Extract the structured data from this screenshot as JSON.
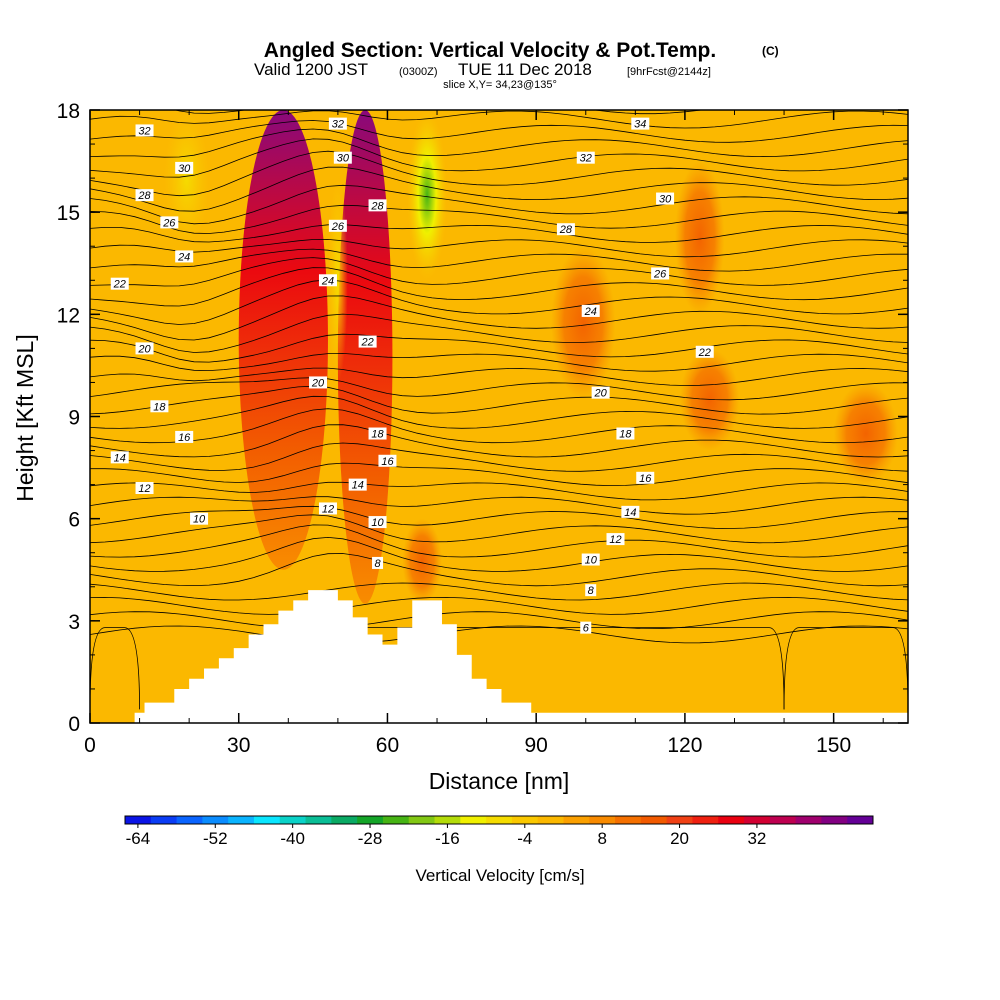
{
  "title": {
    "main": "Angled Section: Vertical Velocity & Pot.Temp.",
    "copyright": "(C)",
    "valid_prefix": "Valid 1200 JST",
    "valid_utc": "(0300Z)",
    "valid_date": "TUE 11 Dec 2018",
    "forecast": "[9hrFcst@2144z]",
    "slice": "slice X,Y= 34,23@135°"
  },
  "chart_data": {
    "type": "heatmap",
    "xlabel": "Distance [nm]",
    "ylabel": "Height [Kft MSL]",
    "xlim": [
      0,
      165
    ],
    "ylim": [
      0,
      18
    ],
    "x_ticks": [
      0,
      30,
      60,
      90,
      120,
      150
    ],
    "y_ticks": [
      0,
      3,
      6,
      9,
      12,
      15,
      18
    ],
    "background_color": "#fbb800",
    "colorbar": {
      "label": "Vertical Velocity [cm/s]",
      "tick_labels": [
        -64,
        -52,
        -40,
        -28,
        -16,
        -4,
        8,
        20,
        32
      ],
      "colors": [
        "#0a14e6",
        "#0a3cf5",
        "#0a64ff",
        "#0a8cff",
        "#0ab4ff",
        "#0ae6ff",
        "#0ad2c8",
        "#0abe96",
        "#0aaa64",
        "#14a528",
        "#46b414",
        "#82c814",
        "#b4dc0a",
        "#f0f000",
        "#f5dc00",
        "#fac800",
        "#fbb800",
        "#fba000",
        "#f88a00",
        "#f57000",
        "#f25a00",
        "#f04014",
        "#ef2010",
        "#ea0010",
        "#d20032",
        "#be0050",
        "#a0006e",
        "#820082",
        "#640096"
      ]
    },
    "updrafts": [
      {
        "x": [
          30,
          48
        ],
        "y": [
          4.5,
          18
        ],
        "peak": 32
      },
      {
        "x": [
          50,
          61
        ],
        "y": [
          3.5,
          18
        ],
        "peak": 32
      },
      {
        "x": [
          63,
          71
        ],
        "y": [
          3.5,
          6
        ],
        "peak": 12
      },
      {
        "x": [
          93,
          106
        ],
        "y": [
          9.5,
          14
        ],
        "peak": 10
      },
      {
        "x": [
          118,
          128
        ],
        "y": [
          12,
          16.5
        ],
        "peak": 10
      },
      {
        "x": [
          119,
          131
        ],
        "y": [
          8,
          11
        ],
        "peak": 8
      },
      {
        "x": [
          150,
          163
        ],
        "y": [
          7,
          10
        ],
        "peak": 8
      }
    ],
    "downdrafts": [
      {
        "x": [
          64,
          72
        ],
        "y": [
          13,
          18
        ],
        "peak": -28
      },
      {
        "x": [
          48,
          52
        ],
        "y": [
          10,
          16
        ],
        "peak": -10
      },
      {
        "x": [
          15,
          24
        ],
        "y": [
          14,
          18
        ],
        "peak": -10
      }
    ],
    "terrain": {
      "x": [
        9,
        11,
        14,
        17,
        20,
        23,
        26,
        29,
        32,
        35,
        38,
        41,
        44,
        47,
        50,
        53,
        56,
        59,
        62,
        65,
        68,
        71,
        74,
        77,
        80,
        83,
        86,
        89,
        92
      ],
      "height": [
        0.3,
        0.6,
        0.6,
        1.0,
        1.3,
        1.6,
        1.9,
        2.2,
        2.6,
        2.9,
        3.3,
        3.6,
        3.9,
        3.9,
        3.6,
        3.1,
        2.6,
        2.3,
        2.8,
        3.6,
        3.6,
        2.9,
        2.0,
        1.3,
        1.0,
        0.6,
        0.6,
        0.3,
        0.3
      ]
    },
    "theta_contour_labels": [
      {
        "x": 11,
        "y": 17.4,
        "label": "32"
      },
      {
        "x": 19,
        "y": 16.3,
        "label": "30"
      },
      {
        "x": 11,
        "y": 15.5,
        "label": "28"
      },
      {
        "x": 16,
        "y": 14.7,
        "label": "26"
      },
      {
        "x": 19,
        "y": 13.7,
        "label": "24"
      },
      {
        "x": 6,
        "y": 12.9,
        "label": "22"
      },
      {
        "x": 11,
        "y": 11,
        "label": "20"
      },
      {
        "x": 14,
        "y": 9.3,
        "label": "18"
      },
      {
        "x": 19,
        "y": 8.4,
        "label": "16"
      },
      {
        "x": 6,
        "y": 7.8,
        "label": "14"
      },
      {
        "x": 11,
        "y": 6.9,
        "label": "12"
      },
      {
        "x": 22,
        "y": 6,
        "label": "10"
      },
      {
        "x": 50,
        "y": 17.6,
        "label": "32"
      },
      {
        "x": 51,
        "y": 16.6,
        "label": "30"
      },
      {
        "x": 58,
        "y": 15.2,
        "label": "28"
      },
      {
        "x": 50,
        "y": 14.6,
        "label": "26"
      },
      {
        "x": 48,
        "y": 13,
        "label": "24"
      },
      {
        "x": 56,
        "y": 11.2,
        "label": "22"
      },
      {
        "x": 46,
        "y": 10,
        "label": "20"
      },
      {
        "x": 58,
        "y": 8.5,
        "label": "18"
      },
      {
        "x": 60,
        "y": 7.7,
        "label": "16"
      },
      {
        "x": 54,
        "y": 7,
        "label": "14"
      },
      {
        "x": 48,
        "y": 6.3,
        "label": "12"
      },
      {
        "x": 58,
        "y": 5.9,
        "label": "10"
      },
      {
        "x": 58,
        "y": 4.7,
        "label": "8"
      },
      {
        "x": 111,
        "y": 17.6,
        "label": "34"
      },
      {
        "x": 100,
        "y": 16.6,
        "label": "32"
      },
      {
        "x": 116,
        "y": 15.4,
        "label": "30"
      },
      {
        "x": 96,
        "y": 14.5,
        "label": "28"
      },
      {
        "x": 115,
        "y": 13.2,
        "label": "26"
      },
      {
        "x": 101,
        "y": 12.1,
        "label": "24"
      },
      {
        "x": 124,
        "y": 10.9,
        "label": "22"
      },
      {
        "x": 103,
        "y": 9.7,
        "label": "20"
      },
      {
        "x": 108,
        "y": 8.5,
        "label": "18"
      },
      {
        "x": 112,
        "y": 7.2,
        "label": "16"
      },
      {
        "x": 109,
        "y": 6.2,
        "label": "14"
      },
      {
        "x": 106,
        "y": 5.4,
        "label": "12"
      },
      {
        "x": 101,
        "y": 4.8,
        "label": "10"
      },
      {
        "x": 101,
        "y": 3.9,
        "label": "8"
      },
      {
        "x": 100,
        "y": 2.8,
        "label": "6"
      }
    ]
  }
}
